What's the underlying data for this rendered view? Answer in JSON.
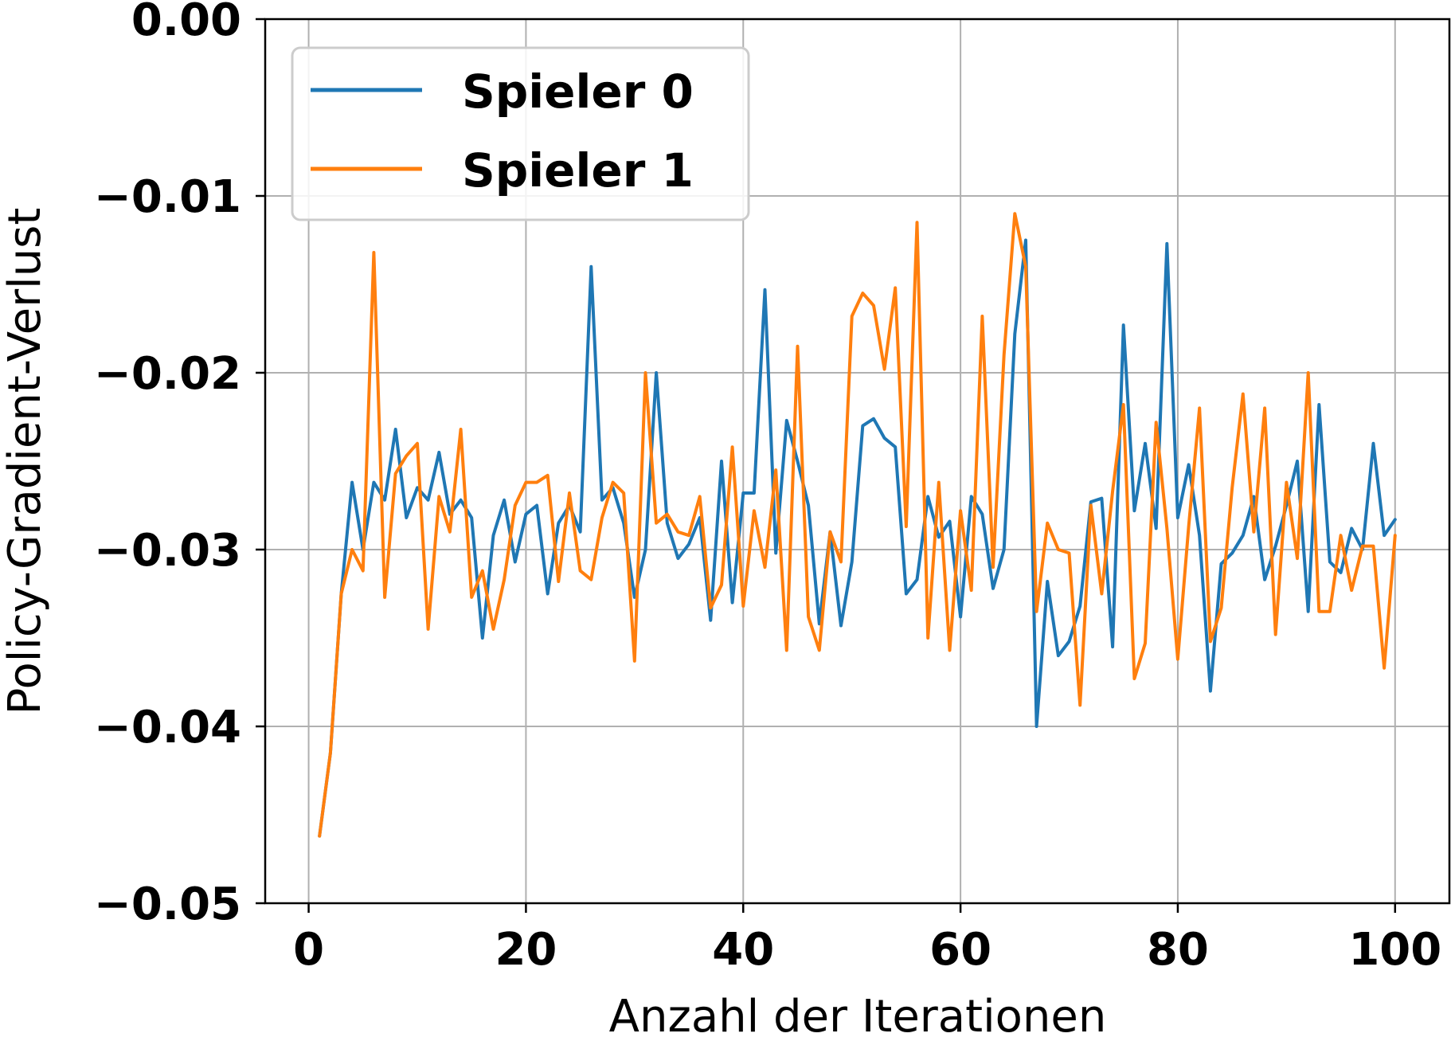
{
  "chart_data": {
    "type": "line",
    "xlabel": "Anzahl der Iterationen",
    "ylabel": "Policy-Gradient-Verlust",
    "xlim": [
      -4,
      105
    ],
    "ylim": [
      -0.05,
      0.0
    ],
    "xticks": [
      0,
      20,
      40,
      60,
      80,
      100
    ],
    "xtick_labels": [
      "0",
      "20",
      "40",
      "60",
      "80",
      "100"
    ],
    "yticks": [
      0.0,
      -0.01,
      -0.02,
      -0.03,
      -0.04,
      -0.05
    ],
    "ytick_labels": [
      "0.00",
      "−0.01",
      "−0.02",
      "−0.03",
      "−0.04",
      "−0.05"
    ],
    "grid": true,
    "legend_position": "top-left",
    "x": [
      1,
      2,
      3,
      4,
      5,
      6,
      7,
      8,
      9,
      10,
      11,
      12,
      13,
      14,
      15,
      16,
      17,
      18,
      19,
      20,
      21,
      22,
      23,
      24,
      25,
      26,
      27,
      28,
      29,
      30,
      31,
      32,
      33,
      34,
      35,
      36,
      37,
      38,
      39,
      40,
      41,
      42,
      43,
      44,
      45,
      46,
      47,
      48,
      49,
      50,
      51,
      52,
      53,
      54,
      55,
      56,
      57,
      58,
      59,
      60,
      61,
      62,
      63,
      64,
      65,
      66,
      67,
      68,
      69,
      70,
      71,
      72,
      73,
      74,
      75,
      76,
      77,
      78,
      79,
      80,
      81,
      82,
      83,
      84,
      85,
      86,
      87,
      88,
      89,
      90,
      91,
      92,
      93,
      94,
      95,
      96,
      97,
      98,
      99,
      100
    ],
    "series": [
      {
        "name": "Spieler 0",
        "color": "#1f77b4",
        "values": [
          -0.0462,
          -0.0415,
          -0.0325,
          -0.0262,
          -0.03,
          -0.0262,
          -0.0272,
          -0.0232,
          -0.0282,
          -0.0265,
          -0.0272,
          -0.0245,
          -0.028,
          -0.0272,
          -0.0282,
          -0.035,
          -0.0292,
          -0.0272,
          -0.0307,
          -0.028,
          -0.0275,
          -0.0325,
          -0.0285,
          -0.0275,
          -0.029,
          -0.014,
          -0.0272,
          -0.0265,
          -0.0285,
          -0.0327,
          -0.03,
          -0.02,
          -0.0285,
          -0.0305,
          -0.0297,
          -0.0282,
          -0.034,
          -0.025,
          -0.033,
          -0.0268,
          -0.0268,
          -0.0153,
          -0.0302,
          -0.0227,
          -0.025,
          -0.0275,
          -0.0342,
          -0.029,
          -0.0343,
          -0.0307,
          -0.023,
          -0.0226,
          -0.0237,
          -0.0242,
          -0.0325,
          -0.0317,
          -0.027,
          -0.0293,
          -0.0284,
          -0.0338,
          -0.027,
          -0.028,
          -0.0322,
          -0.03,
          -0.0178,
          -0.0125,
          -0.04,
          -0.0318,
          -0.036,
          -0.0352,
          -0.0332,
          -0.0273,
          -0.0271,
          -0.0355,
          -0.0173,
          -0.0278,
          -0.024,
          -0.0288,
          -0.0127,
          -0.0282,
          -0.0252,
          -0.0292,
          -0.038,
          -0.0308,
          -0.0302,
          -0.0292,
          -0.027,
          -0.0317,
          -0.0298,
          -0.0275,
          -0.025,
          -0.0335,
          -0.0218,
          -0.0307,
          -0.0313,
          -0.0288,
          -0.03,
          -0.024,
          -0.0292,
          -0.0283
        ]
      },
      {
        "name": "Spieler 1",
        "color": "#ff7f0e",
        "values": [
          -0.0462,
          -0.0415,
          -0.0325,
          -0.03,
          -0.0312,
          -0.0132,
          -0.0327,
          -0.0257,
          -0.0247,
          -0.024,
          -0.0345,
          -0.027,
          -0.029,
          -0.0232,
          -0.0327,
          -0.0312,
          -0.0345,
          -0.0317,
          -0.0275,
          -0.0262,
          -0.0262,
          -0.0258,
          -0.0318,
          -0.0268,
          -0.0312,
          -0.0317,
          -0.0282,
          -0.0262,
          -0.0268,
          -0.0363,
          -0.02,
          -0.0285,
          -0.028,
          -0.029,
          -0.0292,
          -0.027,
          -0.0333,
          -0.032,
          -0.0242,
          -0.0332,
          -0.0278,
          -0.031,
          -0.0255,
          -0.0357,
          -0.0185,
          -0.0338,
          -0.0357,
          -0.029,
          -0.0307,
          -0.0168,
          -0.0155,
          -0.0162,
          -0.0198,
          -0.0152,
          -0.0287,
          -0.0115,
          -0.035,
          -0.0262,
          -0.0357,
          -0.0278,
          -0.0323,
          -0.0168,
          -0.031,
          -0.019,
          -0.011,
          -0.014,
          -0.0335,
          -0.0285,
          -0.03,
          -0.0302,
          -0.0388,
          -0.0275,
          -0.0325,
          -0.0267,
          -0.0218,
          -0.0373,
          -0.0353,
          -0.0228,
          -0.0288,
          -0.0362,
          -0.0287,
          -0.022,
          -0.0352,
          -0.0333,
          -0.0265,
          -0.0212,
          -0.029,
          -0.022,
          -0.0348,
          -0.0262,
          -0.0305,
          -0.02,
          -0.0335,
          -0.0335,
          -0.0292,
          -0.0323,
          -0.0298,
          -0.0298,
          -0.0367,
          -0.0292
        ]
      }
    ]
  }
}
